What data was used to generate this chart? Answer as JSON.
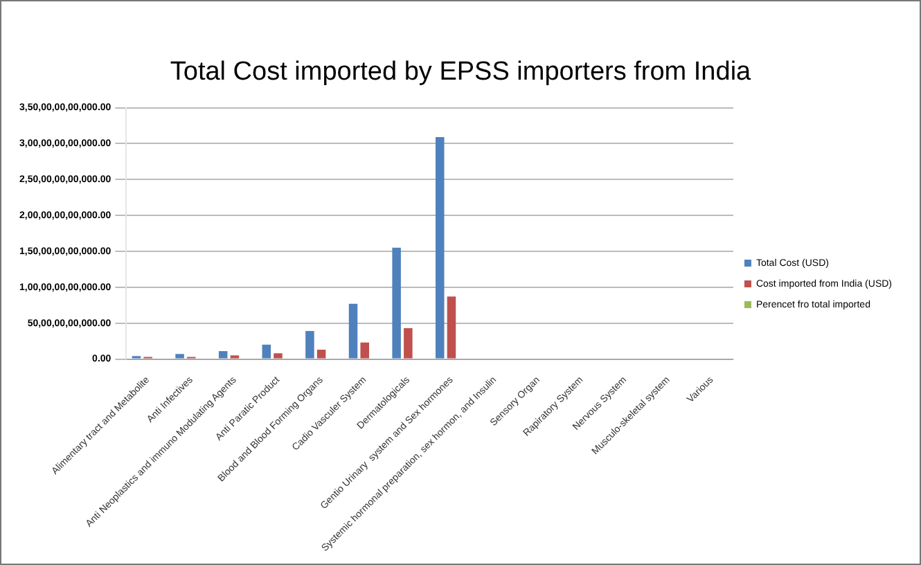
{
  "chart_data": {
    "type": "bar",
    "title": "Total Cost imported by EPSS importers from India",
    "categories": [
      "Alimentary tract and Metabolite",
      "Anti Infectives",
      "Anti Neoplastics and immuno Modulating Agents",
      "Anti Paratic Product",
      "Blood and Blood Forming Organs",
      "Cadio Vasculer System",
      "Dermatologicals",
      "Gentio Urinary  system and Sex hormones",
      "Systemic hormonal preparation, sex hormon, and Insulin",
      "Sensory Organ",
      "Rapiratory System",
      "Nervous System",
      "Musculo-skeletal system",
      "Various"
    ],
    "series": [
      {
        "name": "Total Cost (USD)",
        "color": "#4f81bd",
        "values": [
          4000000000,
          7000000000,
          11000000000,
          20000000000,
          39000000000,
          77000000000,
          155000000000,
          309000000000,
          0,
          0,
          0,
          0,
          0,
          0
        ]
      },
      {
        "name": "Cost imported from India (USD)",
        "color": "#c0504d",
        "values": [
          3000000000,
          3000000000,
          5000000000,
          8000000000,
          13000000000,
          23000000000,
          43000000000,
          87000000000,
          0,
          0,
          0,
          0,
          0,
          0
        ]
      },
      {
        "name": "Perencet fro total imported",
        "color": "#9bbb59",
        "values": [
          0,
          0,
          0,
          0,
          0,
          0,
          0,
          0,
          0,
          0,
          0,
          0,
          0,
          0
        ]
      }
    ],
    "ylim": [
      0,
      350000000000
    ],
    "yticks": [
      {
        "value": 0,
        "label": "0.00"
      },
      {
        "value": 50000000000,
        "label": "50,00,00,00,000.00"
      },
      {
        "value": 100000000000,
        "label": "1,00,00,00,00,000.00"
      },
      {
        "value": 150000000000,
        "label": "1,50,00,00,00,000.00"
      },
      {
        "value": 200000000000,
        "label": "2,00,00,00,00,000.00"
      },
      {
        "value": 250000000000,
        "label": "2,50,00,00,00,000.00"
      },
      {
        "value": 300000000000,
        "label": "3,00,00,00,00,000.00"
      },
      {
        "value": 350000000000,
        "label": "3,50,00,00,00,000.00"
      }
    ],
    "grid": "y",
    "legend": "right"
  }
}
